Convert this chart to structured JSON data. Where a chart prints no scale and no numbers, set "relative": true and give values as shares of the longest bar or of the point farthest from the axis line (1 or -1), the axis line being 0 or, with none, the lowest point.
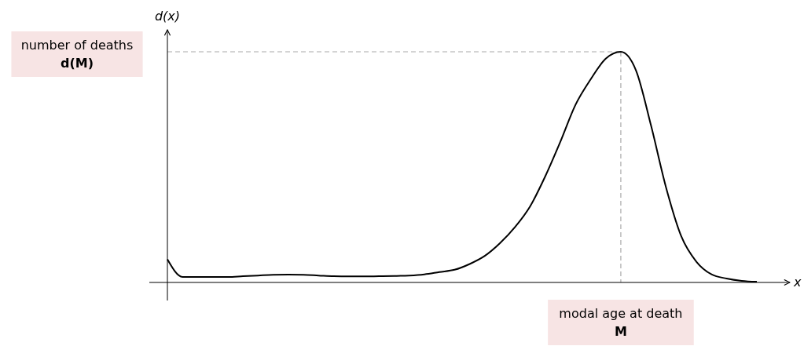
{
  "chart_data": {
    "type": "line",
    "relative": true,
    "xlabel": "x",
    "ylabel": "d(x)",
    "categories": [
      null,
      null,
      null,
      null,
      null,
      null,
      null,
      null,
      null,
      null,
      null,
      null,
      null,
      null,
      null,
      null,
      null,
      null,
      null,
      null,
      null,
      null,
      null,
      null,
      null,
      null,
      null,
      null,
      null,
      null,
      null,
      null,
      null,
      null,
      null,
      null,
      null,
      null,
      null,
      null
    ],
    "series": [
      {
        "color": "#000000",
        "values": [
          0.1,
          0.024,
          0.024,
          0.024,
          0.024,
          0.027,
          0.03,
          0.033,
          0.034,
          0.033,
          0.03,
          0.027,
          0.026,
          0.026,
          0.027,
          0.028,
          0.03,
          0.035,
          0.045,
          0.055,
          0.08,
          0.115,
          0.17,
          0.24,
          0.33,
          0.46,
          0.61,
          0.77,
          0.88,
          0.97,
          1,
          0.92,
          0.68,
          0.41,
          0.2,
          0.09,
          0.035,
          0.017,
          0.007,
          0.003
        ]
      }
    ],
    "marker": "none",
    "line_style": "solid",
    "ref_lines": [
      {
        "axis": "y",
        "value": 1,
        "label": "number of deaths\nd(M)",
        "color": "#aaaaaa",
        "line_style": "dashed"
      }
    ],
    "annotations": [
      "modal age at death\nM"
    ]
  }
}
